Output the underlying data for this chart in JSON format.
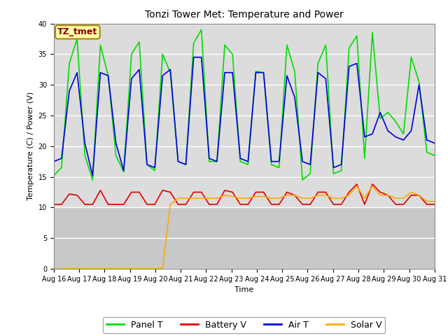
{
  "title": "Tonzi Tower Met: Temperature and Power",
  "xlabel": "Time",
  "ylabel": "Temperature (C) / Power (V)",
  "ylim": [
    0,
    40
  ],
  "xlim_start": 0,
  "xlim_end": 15,
  "xtick_labels": [
    "Aug 16",
    "Aug 17",
    "Aug 18",
    "Aug 19",
    "Aug 20",
    "Aug 21",
    "Aug 22",
    "Aug 23",
    "Aug 24",
    "Aug 25",
    "Aug 26",
    "Aug 27",
    "Aug 28",
    "Aug 29",
    "Aug 30",
    "Aug 31"
  ],
  "bg_color_upper": "#dcdcdc",
  "bg_color_lower": "#c8c8c8",
  "fig_bg": "#ffffff",
  "annotation_text": "TZ_tmet",
  "legend_labels": [
    "Panel T",
    "Battery V",
    "Air T",
    "Solar V"
  ],
  "legend_colors": [
    "#00dd00",
    "#dd0000",
    "#0000dd",
    "#ffaa00"
  ],
  "title_fontsize": 10,
  "axis_label_fontsize": 8,
  "tick_fontsize": 7,
  "panel_t": [
    15.2,
    16.5,
    33.5,
    37.5,
    18.5,
    14.5,
    36.5,
    31.5,
    18.5,
    15.8,
    35.0,
    37.0,
    17.0,
    16.0,
    35.0,
    32.0,
    17.5,
    17.0,
    36.8,
    39.0,
    17.5,
    17.5,
    36.5,
    35.0,
    17.5,
    17.0,
    32.2,
    32.0,
    17.0,
    16.5,
    36.5,
    32.2,
    14.5,
    15.5,
    33.5,
    36.5,
    15.5,
    16.0,
    36.0,
    38.0,
    18.0,
    38.5,
    24.5,
    25.5,
    24.0,
    22.0,
    34.5,
    30.5,
    19.0,
    18.5
  ],
  "air_t": [
    17.5,
    18.0,
    29.0,
    32.0,
    20.5,
    15.2,
    32.0,
    31.5,
    20.5,
    16.0,
    31.0,
    32.5,
    17.0,
    16.5,
    31.5,
    32.5,
    17.5,
    17.0,
    34.5,
    34.5,
    18.0,
    17.5,
    32.0,
    32.0,
    18.0,
    17.5,
    32.0,
    32.0,
    17.5,
    17.5,
    31.5,
    28.0,
    17.5,
    17.0,
    32.0,
    31.0,
    16.5,
    17.0,
    33.0,
    33.5,
    21.5,
    22.0,
    25.5,
    22.5,
    21.5,
    21.0,
    22.5,
    30.0,
    21.0,
    20.5
  ],
  "battery_v": [
    10.5,
    10.5,
    12.2,
    12.0,
    10.5,
    10.5,
    12.8,
    10.5,
    10.5,
    10.5,
    12.5,
    12.5,
    10.5,
    10.5,
    12.8,
    12.5,
    10.5,
    10.5,
    12.5,
    12.5,
    10.5,
    10.5,
    12.8,
    12.5,
    10.5,
    10.5,
    12.5,
    12.5,
    10.5,
    10.5,
    12.5,
    12.0,
    10.5,
    10.5,
    12.5,
    12.5,
    10.5,
    10.5,
    12.5,
    13.8,
    10.5,
    13.8,
    12.5,
    12.0,
    10.5,
    10.5,
    12.0,
    12.0,
    10.5,
    10.5
  ],
  "solar_v": [
    0.0,
    0.0,
    0.0,
    0.0,
    0.0,
    0.0,
    0.0,
    0.0,
    0.0,
    0.0,
    0.0,
    0.0,
    0.0,
    0.0,
    0.1,
    10.5,
    11.5,
    11.5,
    11.5,
    11.5,
    11.5,
    11.5,
    12.0,
    11.8,
    11.5,
    11.5,
    11.8,
    11.8,
    11.5,
    11.5,
    12.0,
    12.0,
    11.5,
    11.5,
    12.0,
    12.0,
    11.5,
    11.5,
    12.0,
    13.5,
    11.5,
    13.5,
    12.0,
    12.0,
    11.5,
    11.5,
    12.5,
    12.0,
    11.0,
    11.0
  ]
}
